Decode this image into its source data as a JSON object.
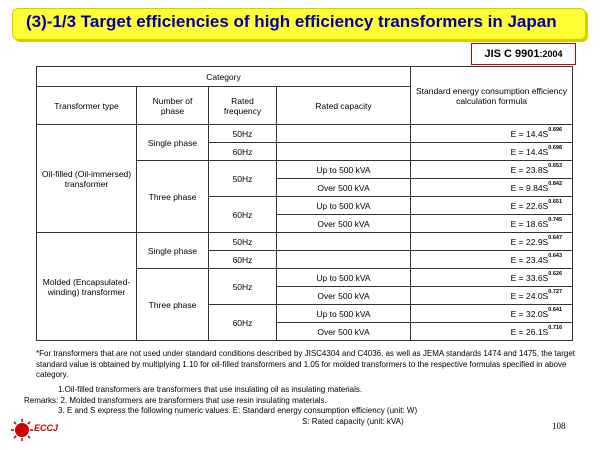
{
  "title": "(3)-1/3 Target efficiencies of high efficiency transformers in Japan",
  "standard": {
    "code": "JIS C 9901",
    "year": ":2004"
  },
  "table": {
    "header_category": "Category",
    "header_formula": "Standard energy consumption efficiency calculation formula",
    "col_type": "Transformer type",
    "col_phase": "Number of phase",
    "col_freq": "Rated frequency",
    "col_capacity": "Rated capacity",
    "groups": [
      {
        "type": "Oil-filled (Oil-immersed) transformer",
        "single_phase": "Single phase",
        "three_phase": "Three phase",
        "rows": [
          {
            "freq": "50Hz",
            "cap": "",
            "base": "E = 14.4S",
            "exp": "0.696"
          },
          {
            "freq": "60Hz",
            "cap": "",
            "base": "E = 14.4S",
            "exp": "0.698"
          },
          {
            "freq": "50Hz",
            "cap": "Up to 500 kVA",
            "base": "E = 23.8S",
            "exp": "0.653"
          },
          {
            "freq": "",
            "cap": "Over 500 kVA",
            "base": "E = 9.84S",
            "exp": "0.842"
          },
          {
            "freq": "60Hz",
            "cap": "Up to 500 kVA",
            "base": "E = 22.6S",
            "exp": "0.651"
          },
          {
            "freq": "",
            "cap": "Over 500 kVA",
            "base": "E = 18.6S",
            "exp": "0.745"
          }
        ]
      },
      {
        "type": "Molded (Encapsulated-winding) transformer",
        "single_phase": "Single phase",
        "three_phase": "Three phase",
        "rows": [
          {
            "freq": "50Hz",
            "cap": "",
            "base": "E = 22.9S",
            "exp": "0.647"
          },
          {
            "freq": "60Hz",
            "cap": "",
            "base": "E = 23.4S",
            "exp": "0.643"
          },
          {
            "freq": "50Hz",
            "cap": "Up to 500 kVA",
            "base": "E = 33.6S",
            "exp": "0.626"
          },
          {
            "freq": "",
            "cap": "Over 500 kVA",
            "base": "E = 24.0S",
            "exp": "0.727"
          },
          {
            "freq": "60Hz",
            "cap": "Up to 500 kVA",
            "base": "E = 32.0S",
            "exp": "0.641"
          },
          {
            "freq": "",
            "cap": "Over 500 kVA",
            "base": "E = 26.1S",
            "exp": "0.716"
          }
        ]
      }
    ]
  },
  "footnote": "*For transformers that are not used under standard conditions described by JISC4304 and C4036, as well as JEMA standards 1474 and 1475, the target standard value is obtained by multiplying 1.10 for oil-filled transformers and 1.05 for molded transformers to the respective formulas specified in above category.",
  "remarks": {
    "line1": "1.Oil-filled transformers are transformers that use insulating oil as insulating materials.",
    "line2": "Remarks: 2. Molded transformers are transformers that use resin insulating materials.",
    "line3": "3. E and S express the following numeric values.   E: Standard energy consumption efficiency (unit: W)",
    "line4": "S: Rated capacity (unit: kVA)"
  },
  "logo_text": "ECCJ",
  "page_number": "108",
  "colors": {
    "title_bg": "#ffff33",
    "title_text": "#0000aa",
    "accent_red": "#cc0000"
  }
}
